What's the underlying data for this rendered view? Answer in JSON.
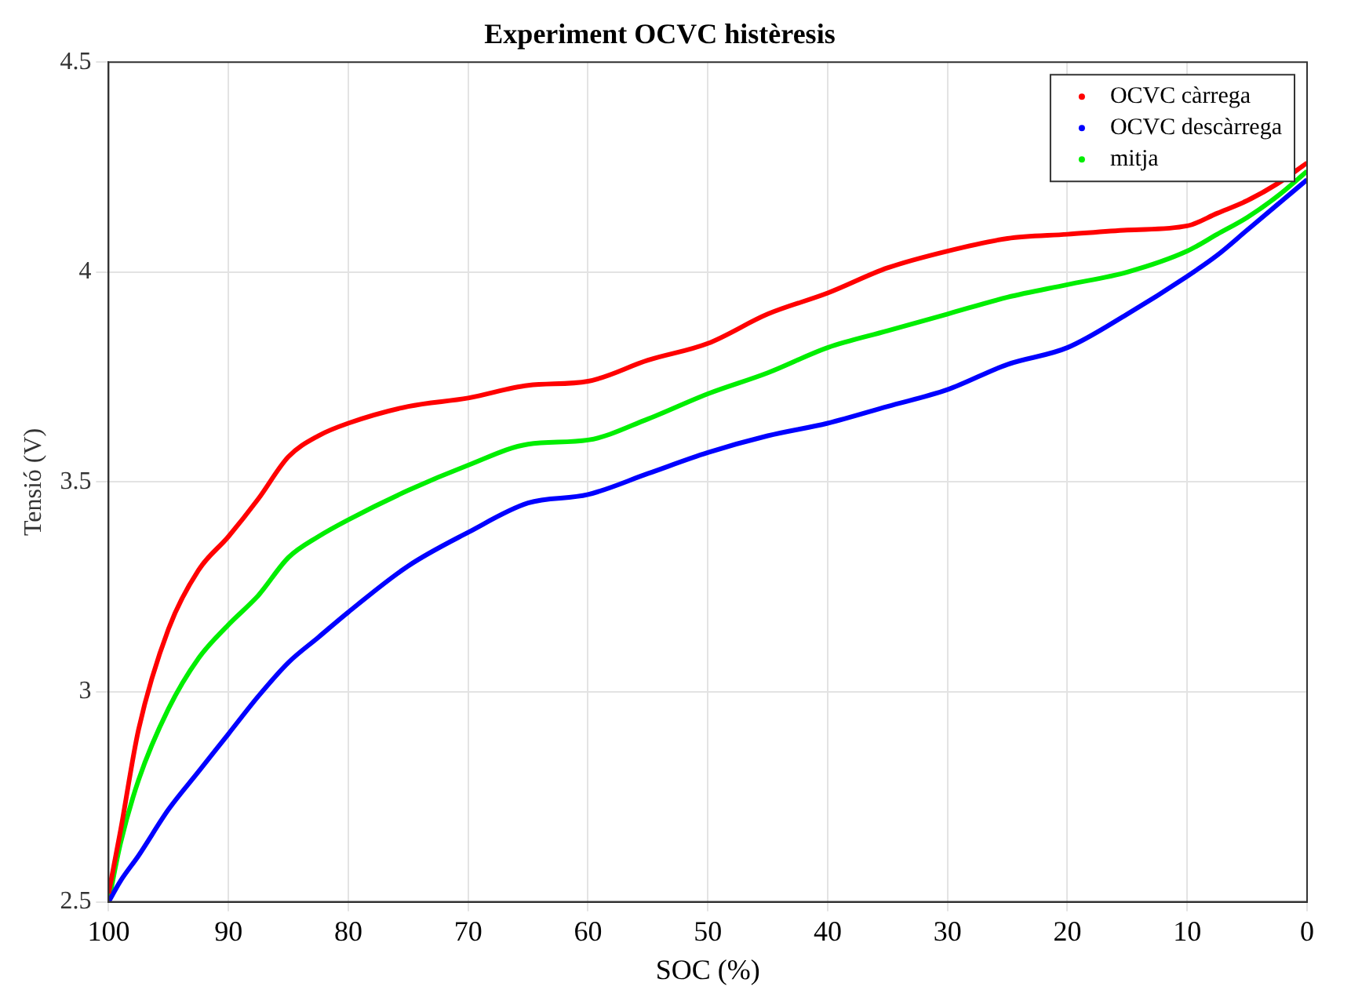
{
  "chart_data": {
    "type": "line",
    "title": "Experiment OCVC histèresis",
    "xlabel": "SOC (%)",
    "ylabel": "Tensió (V)",
    "x": [
      100,
      99,
      97.5,
      95,
      92.5,
      90,
      87.5,
      85,
      82.5,
      80,
      75,
      70,
      65,
      60,
      55,
      50,
      45,
      40,
      35,
      30,
      25,
      20,
      15,
      10,
      7.5,
      5,
      2.5,
      0
    ],
    "series": [
      {
        "name": "OCVC càrrega",
        "color": "#ff0000",
        "values": [
          2.52,
          2.67,
          2.91,
          3.15,
          3.29,
          3.37,
          3.46,
          3.56,
          3.61,
          3.64,
          3.68,
          3.7,
          3.73,
          3.74,
          3.79,
          3.83,
          3.9,
          3.95,
          4.01,
          4.05,
          4.08,
          4.09,
          4.1,
          4.11,
          4.14,
          4.17,
          4.21,
          4.26
        ]
      },
      {
        "name": "OCVC descàrrega",
        "color": "#0000ff",
        "values": [
          2.5,
          2.55,
          2.61,
          2.72,
          2.81,
          2.9,
          2.99,
          3.07,
          3.13,
          3.19,
          3.3,
          3.38,
          3.45,
          3.47,
          3.52,
          3.57,
          3.61,
          3.64,
          3.68,
          3.72,
          3.78,
          3.82,
          3.9,
          3.99,
          4.04,
          4.1,
          4.16,
          4.22
        ]
      },
      {
        "name": "mitja",
        "color": "#00ee00",
        "values": [
          2.5,
          2.64,
          2.79,
          2.96,
          3.08,
          3.16,
          3.23,
          3.32,
          3.37,
          3.41,
          3.48,
          3.54,
          3.59,
          3.6,
          3.65,
          3.71,
          3.76,
          3.82,
          3.86,
          3.9,
          3.94,
          3.97,
          4.0,
          4.05,
          4.09,
          4.13,
          4.18,
          4.24
        ]
      }
    ],
    "xlim": [
      100,
      0
    ],
    "xticks": [
      100,
      90,
      80,
      70,
      60,
      50,
      40,
      30,
      20,
      10,
      0
    ],
    "ylim": [
      2.5,
      4.5
    ],
    "yticks": [
      2.5,
      3,
      3.5,
      4,
      4.5
    ],
    "grid": true,
    "legend": "top right",
    "marker": "none",
    "line_style": "solid"
  }
}
